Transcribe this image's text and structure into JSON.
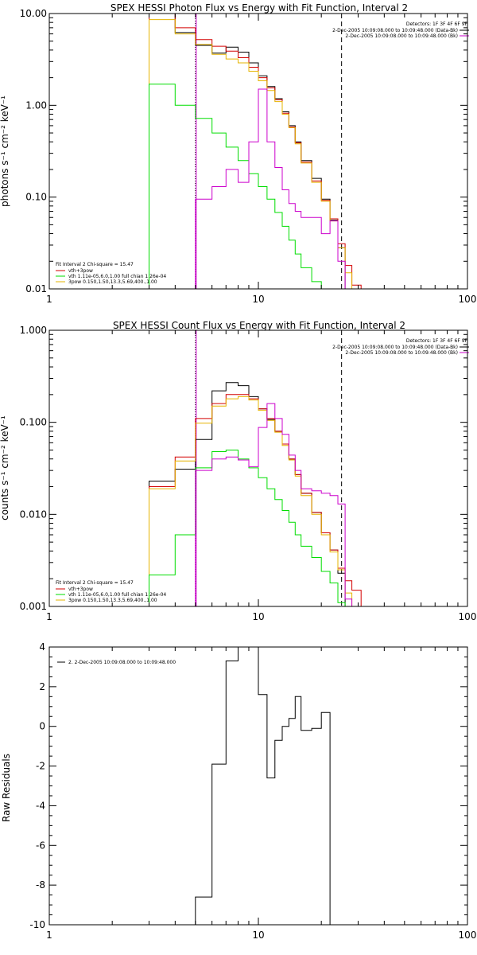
{
  "colors": {
    "black": "#000000",
    "red": "#d40000",
    "green": "#00dd00",
    "yellow": "#e6b400",
    "magenta": "#cc00cc"
  },
  "chart_data": [
    {
      "type": "line",
      "title": "SPEX HESSI Photon Flux vs Energy with Fit Function, Interval 2",
      "ylabel": "photons s⁻¹ cm⁻² keV⁻¹",
      "xscale": "log",
      "yscale": "log",
      "xlim": [
        1,
        100
      ],
      "ylim": [
        0.01,
        10
      ],
      "xticks": [
        "1",
        "10",
        "100"
      ],
      "yticks": [
        "0.01",
        "0.10",
        "1.00",
        "10.00"
      ],
      "vlines": [
        {
          "x": 5,
          "style": "dotted",
          "color": "#000000"
        },
        {
          "x": 5,
          "style": "solid",
          "color": "#cc00cc"
        },
        {
          "x": 25,
          "style": "dashed",
          "color": "#000000"
        }
      ],
      "info": {
        "detectors": "Detectors: 1F 3F 4F 6F 9F",
        "entries": [
          {
            "text": "2-Dec-2005 10:09:08.000 to 10:09:48.000 (Data-Bk)",
            "color": "#000000"
          },
          {
            "text": "2-Dec-2005 10:09:08.000 to 10:09:48.000 (Bk)",
            "color": "#cc00cc"
          }
        ]
      },
      "legend": {
        "header": "Fit Interval 2   Chi-square = 15.47",
        "entries": [
          {
            "text": "vth+3pow",
            "color": "#d40000"
          },
          {
            "text": "vth 1.11e-05,6.0,1.00  full chian 1.26e-04",
            "color": "#00dd00"
          },
          {
            "text": "3pow 0.150,1.50,13.3,5.69,400.,1.00",
            "color": "#e6b400"
          }
        ]
      },
      "edges": [
        3.0,
        4.0,
        5.0,
        6.0,
        7.0,
        8.0,
        9.0,
        10.0,
        11.0,
        12.0,
        13.0,
        14.0,
        15.0,
        16.0,
        18.0,
        20.0,
        22.0,
        24.0,
        26.0,
        28.0,
        31.0,
        34.0
      ],
      "series": [
        {
          "color": "#000000",
          "values": [
            10.0,
            6.2,
            4.5,
            3.7,
            4.3,
            3.8,
            2.9,
            2.1,
            1.6,
            1.18,
            0.85,
            0.6,
            0.4,
            0.25,
            0.16,
            0.095,
            0.056,
            0.028,
            null,
            null,
            null
          ]
        },
        {
          "color": "#d40000",
          "values": [
            10.5,
            7.0,
            5.2,
            4.4,
            3.9,
            3.3,
            2.6,
            2.0,
            1.55,
            1.15,
            0.82,
            0.58,
            0.39,
            0.24,
            0.15,
            0.092,
            0.058,
            0.031,
            0.018,
            0.011,
            0.0095
          ]
        },
        {
          "color": "#e6b400",
          "values": [
            8.6,
            6.0,
            4.6,
            3.6,
            3.2,
            2.9,
            2.35,
            1.85,
            1.45,
            1.1,
            0.8,
            0.57,
            0.38,
            0.235,
            0.145,
            0.09,
            0.055,
            0.028,
            0.015,
            0.0095,
            null
          ]
        },
        {
          "color": "#00dd00",
          "values": [
            1.7,
            1.0,
            0.72,
            0.5,
            0.35,
            0.25,
            0.18,
            0.13,
            0.095,
            0.068,
            0.048,
            0.034,
            0.024,
            0.017,
            0.012,
            0.0085,
            null,
            null,
            null,
            null,
            null
          ]
        },
        {
          "color": "#cc00cc",
          "values": [
            null,
            null,
            0.095,
            0.13,
            0.2,
            0.145,
            0.4,
            1.5,
            0.4,
            0.21,
            0.12,
            0.085,
            0.07,
            0.06,
            0.06,
            0.04,
            0.055,
            0.02,
            0.01,
            null,
            null
          ]
        }
      ]
    },
    {
      "type": "line",
      "title": "SPEX HESSI Count Flux vs Energy with Fit Function, Interval 2",
      "ylabel": "counts s⁻¹ cm⁻² keV⁻¹",
      "xscale": "log",
      "yscale": "log",
      "xlim": [
        1,
        100
      ],
      "ylim": [
        0.001,
        1
      ],
      "xticks": [
        "1",
        "10",
        "100"
      ],
      "yticks": [
        "0.001",
        "0.010",
        "0.100",
        "1.000"
      ],
      "vlines": [
        {
          "x": 5,
          "style": "dotted",
          "color": "#000000"
        },
        {
          "x": 5,
          "style": "solid",
          "color": "#cc00cc"
        },
        {
          "x": 25,
          "style": "dashed",
          "color": "#000000"
        }
      ],
      "info": {
        "detectors": "Detectors: 1F 3F 4F 6F 9F",
        "entries": [
          {
            "text": "2-Dec-2005 10:09:08.000 to 10:09:48.000 (Data-Bk)",
            "color": "#000000"
          },
          {
            "text": "2-Dec-2005 10:09:08.000 to 10:09:48.000 (Bk)",
            "color": "#cc00cc"
          }
        ]
      },
      "legend": {
        "header": "Fit Interval 2   Chi-square = 15.47",
        "entries": [
          {
            "text": "vth+3pow",
            "color": "#d40000"
          },
          {
            "text": "vth 1.11e-05,6.0,1.00  full chian 1.26e-04",
            "color": "#00dd00"
          },
          {
            "text": "3pow 0.150,1.50,13.3,5.69,400.,1.00",
            "color": "#e6b400"
          }
        ]
      },
      "edges": [
        3.0,
        4.0,
        5.0,
        6.0,
        7.0,
        8.0,
        9.0,
        10.0,
        11.0,
        12.0,
        13.0,
        14.0,
        15.0,
        16.0,
        18.0,
        20.0,
        22.0,
        24.0,
        26.0,
        28.0,
        31.0,
        34.0
      ],
      "series": [
        {
          "color": "#000000",
          "values": [
            0.023,
            0.031,
            0.065,
            0.22,
            0.27,
            0.25,
            0.19,
            0.14,
            0.107,
            0.08,
            0.058,
            0.04,
            0.027,
            0.017,
            0.0105,
            0.0063,
            0.0041,
            0.0023,
            null,
            null,
            null
          ]
        },
        {
          "color": "#d40000",
          "values": [
            0.02,
            0.042,
            0.11,
            0.16,
            0.2,
            0.2,
            0.18,
            0.14,
            0.11,
            0.08,
            0.058,
            0.04,
            0.027,
            0.017,
            0.0105,
            0.0063,
            0.0041,
            0.0026,
            0.0019,
            0.0015,
            null
          ]
        },
        {
          "color": "#e6b400",
          "values": [
            0.019,
            0.038,
            0.098,
            0.15,
            0.18,
            0.19,
            0.175,
            0.135,
            0.105,
            0.078,
            0.056,
            0.039,
            0.026,
            0.016,
            0.01,
            0.006,
            0.0039,
            0.0025,
            0.0014,
            null,
            null
          ]
        },
        {
          "color": "#00dd00",
          "values": [
            0.0022,
            0.006,
            0.032,
            0.048,
            0.05,
            0.04,
            0.032,
            0.025,
            0.019,
            0.0145,
            0.011,
            0.0082,
            0.006,
            0.0045,
            0.0034,
            0.0024,
            0.0018,
            0.0011,
            null,
            null,
            null
          ]
        },
        {
          "color": "#cc00cc",
          "values": [
            null,
            null,
            0.03,
            0.04,
            0.042,
            0.039,
            0.033,
            0.088,
            0.16,
            0.11,
            0.074,
            0.044,
            0.03,
            0.019,
            0.018,
            0.017,
            0.016,
            0.013,
            0.0012,
            null,
            null
          ]
        }
      ]
    },
    {
      "type": "line",
      "ylabel": "Raw Residuals",
      "xscale": "log",
      "yscale": "linear",
      "xlim": [
        1,
        100
      ],
      "ylim": [
        -10,
        4
      ],
      "xticks": [
        "1",
        "10",
        "100"
      ],
      "yticks": [
        "-10",
        "-8",
        "-6",
        "-4",
        "-2",
        "0",
        "2",
        "4"
      ],
      "legend_entry": "2.  2-Dec-2005 10:09:08.000 to 10:09:48.000",
      "edges": [
        5.0,
        6.0,
        7.0,
        8.0,
        9.0,
        10.0,
        11.0,
        12.0,
        13.0,
        14.0,
        15.0,
        16.0,
        18.0,
        20.0,
        22.0,
        24.0,
        26.0
      ],
      "series": [
        {
          "color": "#000000",
          "values": [
            -8.6,
            -1.9,
            3.3,
            4.1,
            4.0,
            1.6,
            -2.6,
            -0.7,
            0.0,
            0.4,
            1.5,
            -0.2,
            -0.1,
            0.7,
            null,
            null
          ]
        }
      ]
    }
  ]
}
